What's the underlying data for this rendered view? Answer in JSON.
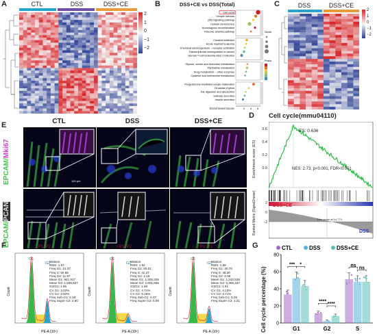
{
  "panels": {
    "A": {
      "label": "A",
      "groups": [
        "CTL",
        "DSS",
        "DSS+CE"
      ],
      "colorbar_ticks": [
        "2",
        "1",
        "0",
        "−1",
        "−2"
      ]
    },
    "B": {
      "label": "B",
      "title": "DSS+CE vs DSS(Total)",
      "terms": [
        "Cell cycle",
        "Oocyte meiosis",
        "p53 signaling pathway",
        "Cellular senescence",
        "Homologous recombination",
        "Flavonic anemia pathway",
        "Cocaine addiction",
        "Acute myeloid leukemia",
        "Chemical carcinogenesis – receptor activation",
        "Transcriptional misregulation in cancer",
        "Human T-cell leukemia virus 1 infection",
        "Glycine, serine and threonine metabolism",
        "Pyrimidine metabolism",
        "Drug metabolism – other enzymes",
        "Cysteine and methionine metabolism",
        "Progesterone-mediated oocyte maturation",
        "Circadian rhythm",
        "Fat digestion and absorption",
        "Salivary secretion",
        "Insulin secretion"
      ],
      "xlabel": "Enrichment Score",
      "legend_number_title": "Number",
      "legend_p_title": "Pvalue"
    },
    "C": {
      "label": "C",
      "groups": [
        "DSS",
        "DSS+CE"
      ],
      "colorbar_ticks": [
        "2",
        "1",
        "0",
        "−1",
        "−2"
      ]
    },
    "D": {
      "label": "D",
      "title": "Cell cycle(mmu04110)",
      "es": "ES: 0.636",
      "nes": "NES: 2.73, p<0.001, FDR<0.001",
      "ylabel_top": "Enrichment score (ES)",
      "ylabel_bottom": "Ranked Metric (Signal2noise)",
      "left_label": "DSS+CE",
      "right_label": "DSS",
      "zero_label": "Zero score at 14,774",
      "yticks_top": [
        "0.6",
        "0.4",
        "0.2",
        "0.0"
      ],
      "yticks_bottom": [
        "2",
        "0",
        "-2"
      ]
    },
    "E": {
      "label": "E",
      "cols": [
        "CTL",
        "DSS",
        "DSS+CE"
      ],
      "row1_label_a": "EPCAM/",
      "row1_label_b": "Mki67",
      "row2_label_a": "EPCAM/",
      "row2_label_b": "PCAN",
      "scale": "100 μm"
    },
    "F": {
      "label": "F",
      "plots": [
        {
          "id": "1-5",
          "stats": "Watson\nRMS: 1.87\nFreq G1: 31.37\nFreq S: 50.68\nFreq G2: 11.97\nMean G1: 941,917\nMean G2: 1,835,507\nG2/G1: 1.95\nCV G1: 3.02%\nCV G2: 3.92%\nFreq Sub-G1: 2.18\nFreq Super G2: 3.80"
        },
        {
          "id": "2-3",
          "stats": "Watson\nRMS: 1.64\nFreq G1: 55.01\nFreq S: 42.37\nFreq G2: 2.15\nMean G1: 1,305,206\nMean G2: 2,601,565\nG2/G1: 1.99\nCV G1: 4.71%\nCV G2: 5.26%\nFreq Sub-G1: 0.47\nFreq Super G2: 0.00"
        },
        {
          "id": "3-5",
          "stats": "Watson\nRMS: 1.89\nFreq G1: 40.76\nFreq S: 46.20\nFreq G2: 6.58\nMean G1: 1,242,538\nMean G2: 2,369,167\nG2/G1: 1.91\nCV G1: 4.13%\nCV G2: 3.71%\nFreq Sub-G1: 5.26\nFreq Super G2: 1.21"
        }
      ],
      "gate": "/ P1/ P2",
      "g1": "G1",
      "g2": "G2",
      "xlabel": "PE-A (10⁶)",
      "ylabel": "Count"
    },
    "G": {
      "label": "G"
    }
  },
  "chart_data": {
    "type": "bar",
    "title": "",
    "ylabel": "Cell cycle percentage (%)",
    "categories": [
      "G1",
      "G2",
      "S"
    ],
    "ylim": [
      0,
      80
    ],
    "yticks": [
      0,
      20,
      40,
      60,
      80
    ],
    "legend": "top",
    "series": [
      {
        "name": "CTL",
        "color": "#a36bc7",
        "values": [
          33,
          11,
          51
        ]
      },
      {
        "name": "DSS",
        "color": "#5ab0de",
        "values": [
          52,
          2,
          48
        ]
      },
      {
        "name": "DSS+CE",
        "color": "#58c3b5",
        "values": [
          43,
          8,
          48
        ]
      }
    ],
    "significance": [
      {
        "category": "G1",
        "pair": [
          0,
          1
        ],
        "text": "***"
      },
      {
        "category": "G1",
        "pair": [
          1,
          2
        ],
        "text": "*"
      },
      {
        "category": "G2",
        "pair": [
          0,
          1
        ],
        "text": "****"
      },
      {
        "category": "G2",
        "pair": [
          1,
          2
        ],
        "text": "****"
      },
      {
        "category": "S",
        "pair": [
          0,
          1
        ],
        "text": "ns"
      },
      {
        "category": "S",
        "pair": [
          1,
          2
        ],
        "text": "ns"
      }
    ]
  }
}
